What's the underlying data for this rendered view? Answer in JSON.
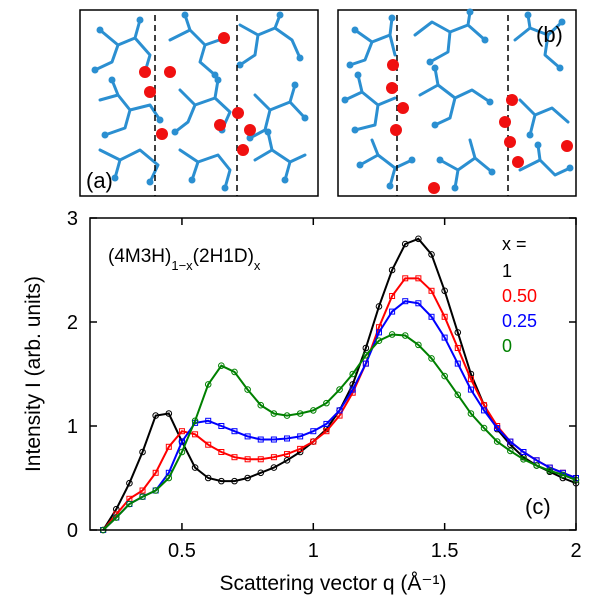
{
  "panels": [
    {
      "label": "(a)"
    },
    {
      "label": "(b)"
    }
  ],
  "chart_data": {
    "type": "line",
    "annotation": [
      "(4M3H)",
      "1−x",
      "(2H1D)",
      "x"
    ],
    "panel_label": "(c)",
    "legend_title": "x =",
    "x_label": "Scattering vector q (Å⁻¹)",
    "y_label": "Intensity I (arb. units)",
    "xlim": [
      0.15,
      2.0
    ],
    "xticks": [
      0.5,
      1.0,
      1.5,
      2.0
    ],
    "ylim": [
      0,
      3
    ],
    "yticks": [
      0,
      1,
      2,
      3
    ],
    "x": [
      0.2,
      0.25,
      0.3,
      0.35,
      0.4,
      0.45,
      0.5,
      0.55,
      0.6,
      0.65,
      0.7,
      0.75,
      0.8,
      0.85,
      0.9,
      0.95,
      1.0,
      1.05,
      1.1,
      1.15,
      1.2,
      1.25,
      1.3,
      1.35,
      1.4,
      1.45,
      1.5,
      1.55,
      1.6,
      1.65,
      1.7,
      1.75,
      1.8,
      1.85,
      1.9,
      1.95,
      2.0
    ],
    "series": [
      {
        "name": "1",
        "color": "#000000",
        "marker": "circle",
        "values": [
          0.0,
          0.2,
          0.45,
          0.75,
          1.1,
          1.12,
          0.85,
          0.6,
          0.5,
          0.47,
          0.47,
          0.5,
          0.55,
          0.6,
          0.67,
          0.75,
          0.85,
          0.97,
          1.15,
          1.4,
          1.75,
          2.15,
          2.5,
          2.75,
          2.8,
          2.65,
          2.3,
          1.9,
          1.5,
          1.2,
          0.97,
          0.82,
          0.7,
          0.62,
          0.56,
          0.5,
          0.45
        ]
      },
      {
        "name": "0.50",
        "color": "#ff0000",
        "marker": "square",
        "values": [
          0.0,
          0.15,
          0.3,
          0.38,
          0.55,
          0.8,
          0.95,
          0.92,
          0.82,
          0.75,
          0.7,
          0.68,
          0.68,
          0.7,
          0.73,
          0.78,
          0.85,
          0.95,
          1.1,
          1.32,
          1.6,
          1.95,
          2.25,
          2.42,
          2.42,
          2.3,
          2.05,
          1.75,
          1.45,
          1.2,
          1.0,
          0.85,
          0.75,
          0.67,
          0.6,
          0.55,
          0.5
        ]
      },
      {
        "name": "0.25",
        "color": "#0000ff",
        "marker": "square",
        "values": [
          0.0,
          0.12,
          0.25,
          0.32,
          0.38,
          0.55,
          0.85,
          1.03,
          1.05,
          1.0,
          0.95,
          0.9,
          0.87,
          0.87,
          0.88,
          0.9,
          0.95,
          1.02,
          1.15,
          1.35,
          1.6,
          1.9,
          2.1,
          2.2,
          2.18,
          2.05,
          1.85,
          1.6,
          1.35,
          1.15,
          0.98,
          0.85,
          0.75,
          0.67,
          0.6,
          0.55,
          0.5
        ]
      },
      {
        "name": "0",
        "color": "#008000",
        "marker": "circle",
        "values": [
          0.0,
          0.12,
          0.25,
          0.32,
          0.38,
          0.5,
          0.75,
          1.05,
          1.4,
          1.58,
          1.52,
          1.35,
          1.2,
          1.12,
          1.1,
          1.12,
          1.15,
          1.22,
          1.35,
          1.5,
          1.68,
          1.82,
          1.88,
          1.87,
          1.78,
          1.65,
          1.48,
          1.3,
          1.12,
          0.98,
          0.85,
          0.76,
          0.68,
          0.62,
          0.57,
          0.53,
          0.48
        ]
      }
    ]
  }
}
